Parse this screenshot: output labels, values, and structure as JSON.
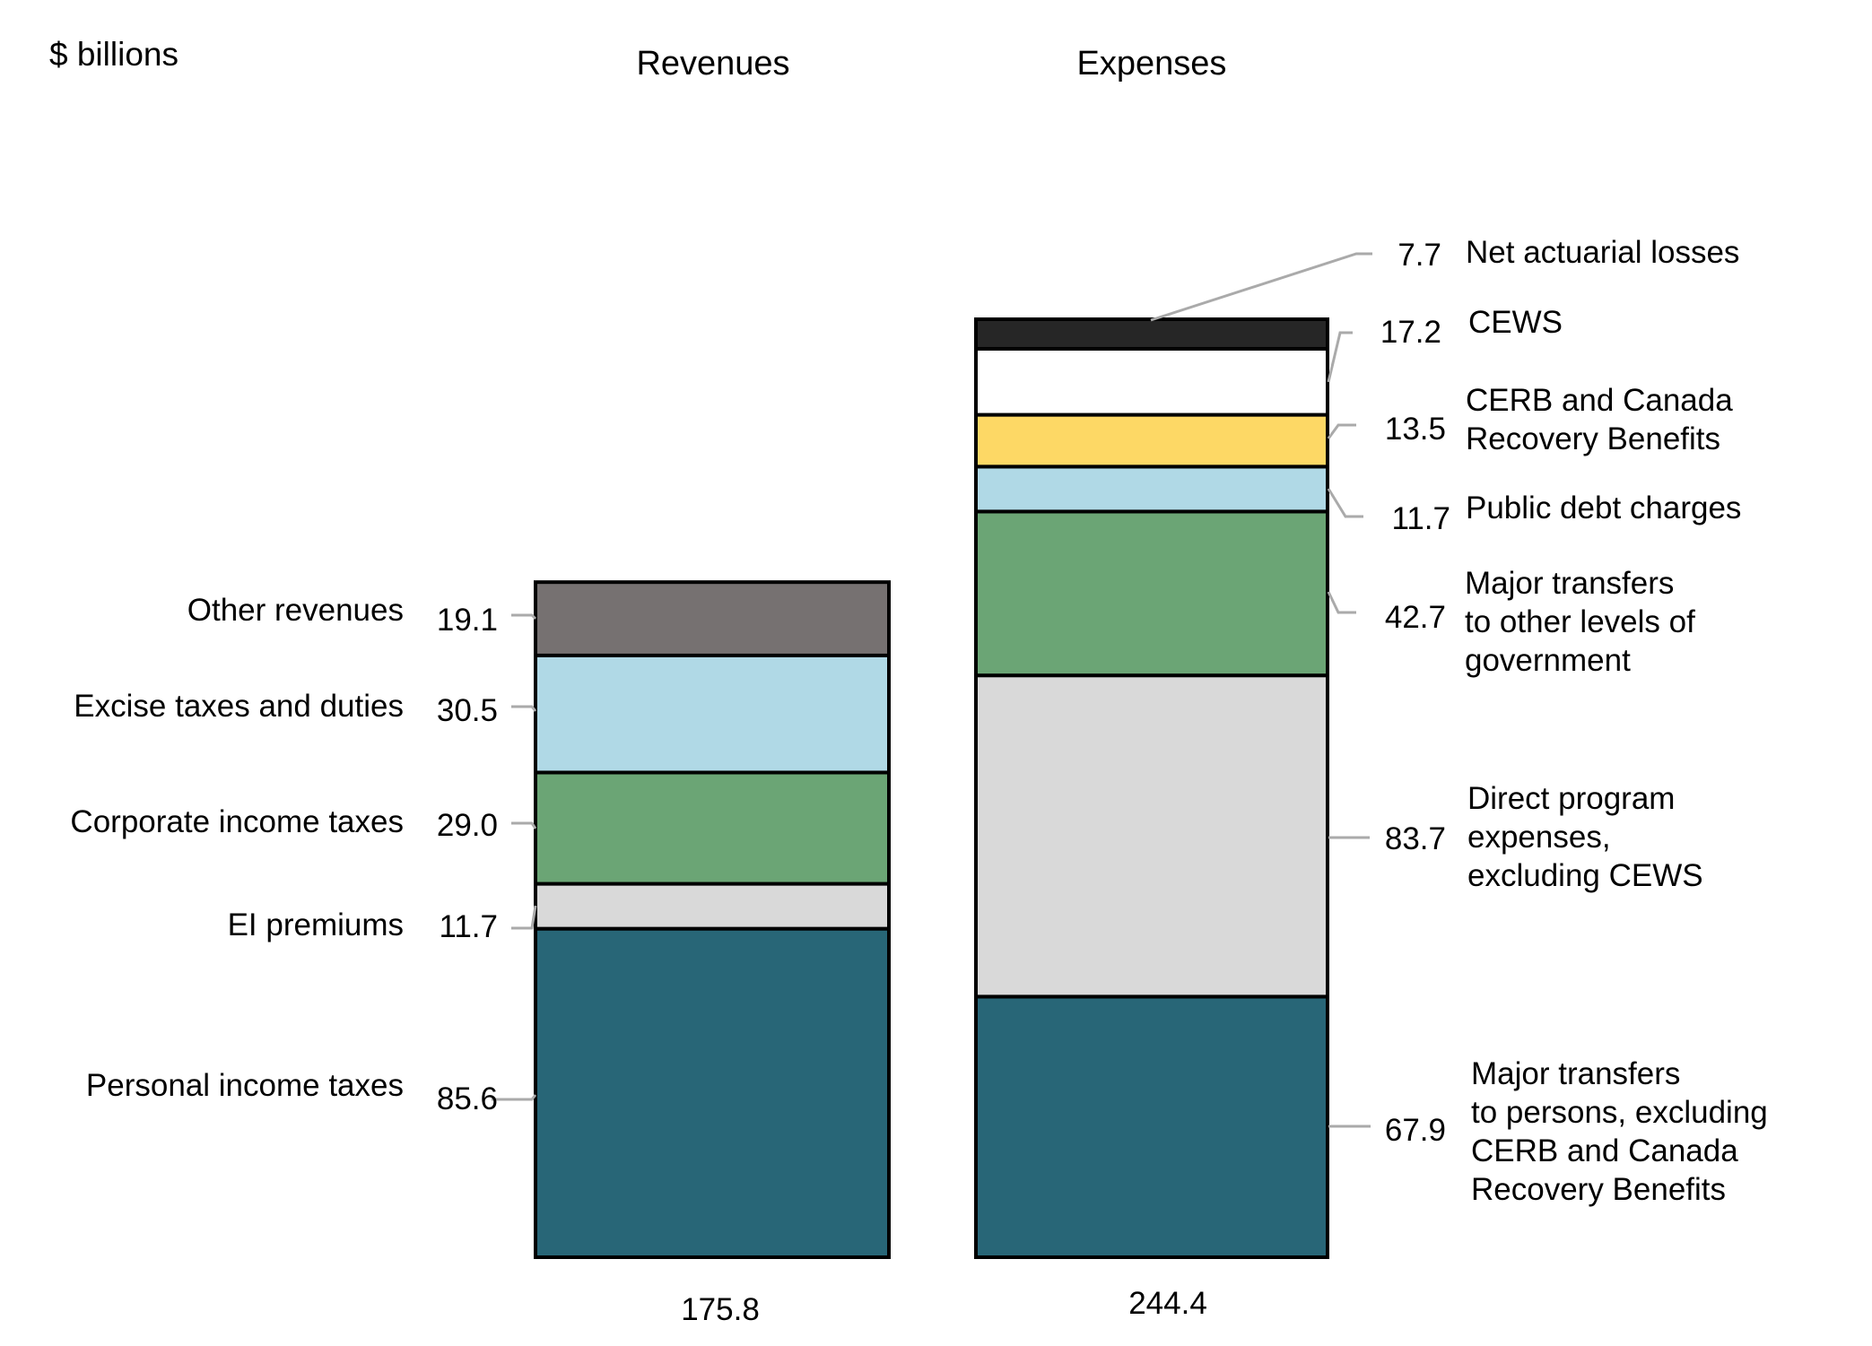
{
  "chart_data": {
    "type": "bar",
    "subtype": "stacked",
    "unit_label": "$ billions",
    "categories": [
      "Revenues",
      "Expenses"
    ],
    "totals": [
      "175.8",
      "244.4"
    ],
    "stacks": [
      {
        "name": "Revenues",
        "total": 175.8,
        "segments": [
          {
            "label": "Personal income taxes",
            "value": 85.6,
            "value_text": "85.6",
            "color": "#286677"
          },
          {
            "label": "EI premiums",
            "value": 11.7,
            "value_text": "11.7",
            "color": "#d9d9d9"
          },
          {
            "label": "Corporate income taxes",
            "value": 29.0,
            "value_text": "29.0",
            "color": "#6ba575"
          },
          {
            "label": "Excise taxes and duties",
            "value": 30.5,
            "value_text": "30.5",
            "color": "#b0d9e6"
          },
          {
            "label": "Other revenues",
            "value": 19.1,
            "value_text": "19.1",
            "color": "#767171"
          }
        ]
      },
      {
        "name": "Expenses",
        "total": 244.4,
        "segments": [
          {
            "label": "Major transfers|to persons, excluding|CERB and Canada|Recovery Benefits",
            "value": 67.9,
            "value_text": "67.9",
            "color": "#286677"
          },
          {
            "label": "Direct program|expenses,|excluding CEWS",
            "value": 83.7,
            "value_text": "83.7",
            "color": "#d9d9d9"
          },
          {
            "label": "Major transfers|to other levels of|government",
            "value": 42.7,
            "value_text": "42.7",
            "color": "#6ba575"
          },
          {
            "label": "Public debt charges",
            "value": 11.7,
            "value_text": "11.7",
            "color": "#b0d9e6"
          },
          {
            "label": "CERB and Canada|Recovery Benefits",
            "value": 13.5,
            "value_text": "13.5",
            "color": "#fdd865"
          },
          {
            "label": "CEWS",
            "value": 17.2,
            "value_text": "17.2",
            "color": "#ffffff"
          },
          {
            "label": "Net actuarial losses",
            "value": 7.7,
            "value_text": "7.7",
            "color": "#262626"
          }
        ]
      }
    ],
    "title": "",
    "xlabel": "",
    "ylabel": "$ billions",
    "ylim": [
      0,
      244.4
    ],
    "grid": false,
    "legend": "none (direct labels)"
  }
}
